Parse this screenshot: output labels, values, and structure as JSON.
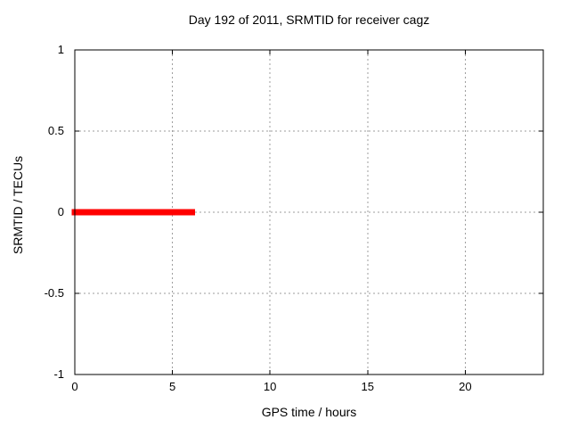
{
  "chart_data": {
    "type": "line",
    "title": "Day 192 of 2011, SRMTID for receiver cagz",
    "xlabel": "GPS time / hours",
    "ylabel": "SRMTID / TECUs",
    "xlim": [
      0,
      24
    ],
    "ylim": [
      -1,
      1
    ],
    "grid": true,
    "legend_position": "none",
    "colors": {
      "background": "#ffffff",
      "border": "#000000",
      "grid": "#9e9e9e",
      "text": "#000000",
      "series": "#ff0000"
    },
    "xticks": [
      {
        "value": 0,
        "label": "0"
      },
      {
        "value": 5,
        "label": "5"
      },
      {
        "value": 10,
        "label": "10"
      },
      {
        "value": 15,
        "label": "15"
      },
      {
        "value": 20,
        "label": "20"
      }
    ],
    "yticks": [
      {
        "value": -1,
        "label": "-1"
      },
      {
        "value": -0.5,
        "label": "-0.5"
      },
      {
        "value": 0,
        "label": "0"
      },
      {
        "value": 0.5,
        "label": "0.5"
      },
      {
        "value": 1,
        "label": "1"
      }
    ],
    "series": [
      {
        "name": "SRMTID",
        "color": "#ff0000",
        "linewidth": 7,
        "x": [
          0,
          6
        ],
        "y": [
          0,
          0
        ]
      }
    ]
  }
}
